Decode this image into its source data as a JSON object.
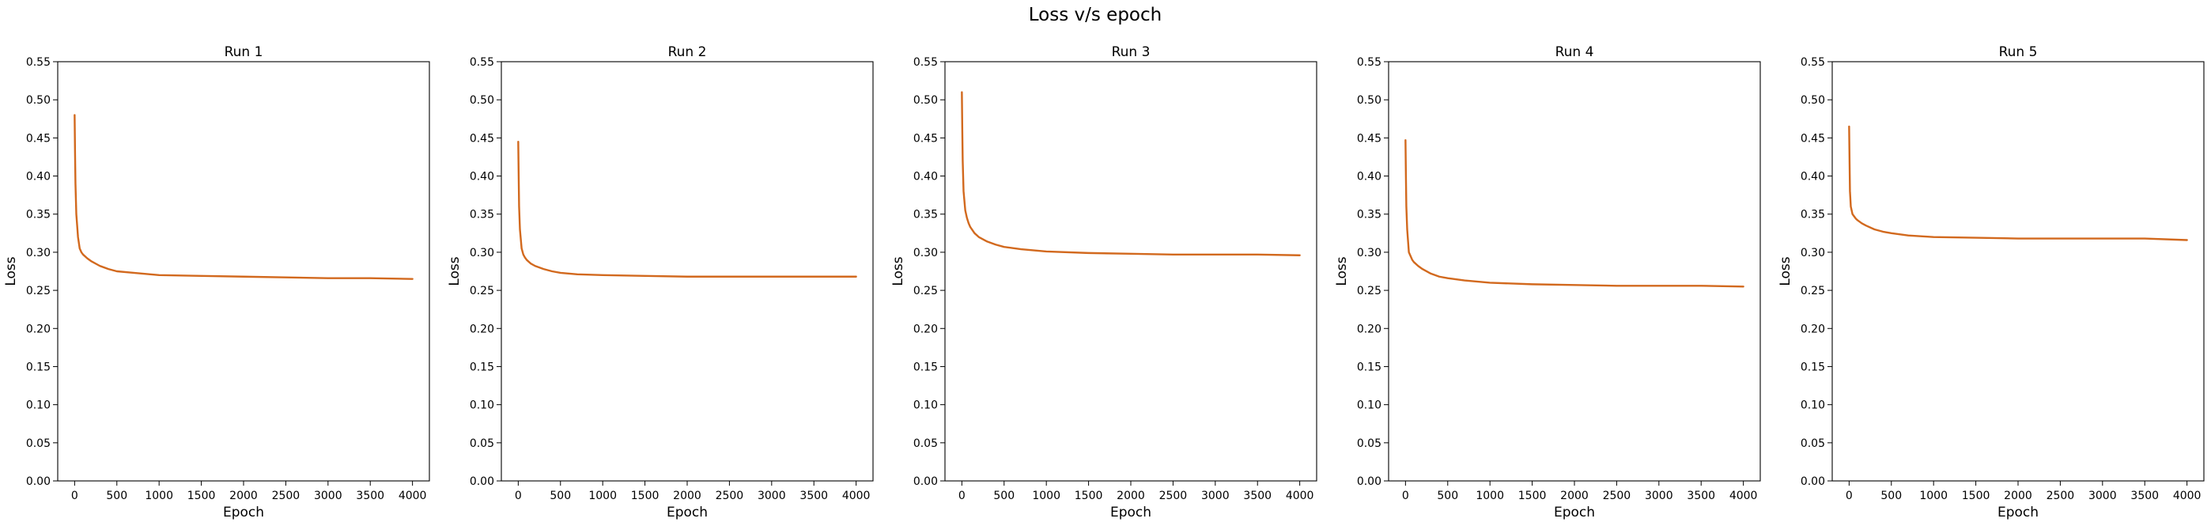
{
  "figure": {
    "title": "Loss v/s epoch"
  },
  "chart_data": [
    {
      "type": "line",
      "title": "Run 1",
      "xlabel": "Epoch",
      "ylabel": "Loss",
      "xlim": [
        -200,
        4200
      ],
      "ylim": [
        0,
        0.55
      ],
      "xticks": [
        0,
        500,
        1000,
        1500,
        2000,
        2500,
        3000,
        3500,
        4000
      ],
      "yticks": [
        0.0,
        0.05,
        0.1,
        0.15,
        0.2,
        0.25,
        0.3,
        0.35,
        0.4,
        0.45,
        0.5,
        0.55
      ],
      "grid": false,
      "series": [
        {
          "color": "#d2691e",
          "x": [
            0,
            5,
            10,
            20,
            40,
            60,
            80,
            100,
            150,
            200,
            300,
            400,
            500,
            700,
            1000,
            1500,
            2000,
            2500,
            3000,
            3500,
            4000
          ],
          "y": [
            0.48,
            0.43,
            0.39,
            0.35,
            0.32,
            0.305,
            0.3,
            0.297,
            0.292,
            0.288,
            0.282,
            0.278,
            0.275,
            0.273,
            0.27,
            0.269,
            0.268,
            0.267,
            0.266,
            0.266,
            0.265
          ]
        }
      ]
    },
    {
      "type": "line",
      "title": "Run 2",
      "xlabel": "Epoch",
      "ylabel": "Loss",
      "xlim": [
        -200,
        4200
      ],
      "ylim": [
        0,
        0.55
      ],
      "xticks": [
        0,
        500,
        1000,
        1500,
        2000,
        2500,
        3000,
        3500,
        4000
      ],
      "yticks": [
        0.0,
        0.05,
        0.1,
        0.15,
        0.2,
        0.25,
        0.3,
        0.35,
        0.4,
        0.45,
        0.5,
        0.55
      ],
      "grid": false,
      "series": [
        {
          "color": "#d2691e",
          "x": [
            0,
            5,
            10,
            20,
            40,
            60,
            80,
            100,
            150,
            200,
            300,
            400,
            500,
            700,
            1000,
            1500,
            2000,
            2500,
            3000,
            3500,
            4000
          ],
          "y": [
            0.445,
            0.4,
            0.36,
            0.33,
            0.305,
            0.297,
            0.293,
            0.29,
            0.285,
            0.282,
            0.278,
            0.275,
            0.273,
            0.271,
            0.27,
            0.269,
            0.268,
            0.268,
            0.268,
            0.268,
            0.268
          ]
        }
      ]
    },
    {
      "type": "line",
      "title": "Run 3",
      "xlabel": "Epoch",
      "ylabel": "Loss",
      "xlim": [
        -200,
        4200
      ],
      "ylim": [
        0,
        0.55
      ],
      "xticks": [
        0,
        500,
        1000,
        1500,
        2000,
        2500,
        3000,
        3500,
        4000
      ],
      "yticks": [
        0.0,
        0.05,
        0.1,
        0.15,
        0.2,
        0.25,
        0.3,
        0.35,
        0.4,
        0.45,
        0.5,
        0.55
      ],
      "grid": false,
      "series": [
        {
          "color": "#d2691e",
          "x": [
            0,
            5,
            10,
            20,
            40,
            60,
            80,
            100,
            150,
            200,
            300,
            400,
            500,
            700,
            1000,
            1500,
            2000,
            2500,
            3000,
            3500,
            4000
          ],
          "y": [
            0.51,
            0.46,
            0.42,
            0.38,
            0.355,
            0.345,
            0.338,
            0.333,
            0.325,
            0.32,
            0.314,
            0.31,
            0.307,
            0.304,
            0.301,
            0.299,
            0.298,
            0.297,
            0.297,
            0.297,
            0.296
          ]
        }
      ]
    },
    {
      "type": "line",
      "title": "Run 4",
      "xlabel": "Epoch",
      "ylabel": "Loss",
      "xlim": [
        -200,
        4200
      ],
      "ylim": [
        0,
        0.55
      ],
      "xticks": [
        0,
        500,
        1000,
        1500,
        2000,
        2500,
        3000,
        3500,
        4000
      ],
      "yticks": [
        0.0,
        0.05,
        0.1,
        0.15,
        0.2,
        0.25,
        0.3,
        0.35,
        0.4,
        0.45,
        0.5,
        0.55
      ],
      "grid": false,
      "series": [
        {
          "color": "#d2691e",
          "x": [
            0,
            5,
            10,
            20,
            40,
            60,
            80,
            100,
            150,
            200,
            300,
            400,
            500,
            700,
            1000,
            1500,
            2000,
            2500,
            3000,
            3500,
            4000
          ],
          "y": [
            0.447,
            0.4,
            0.36,
            0.33,
            0.3,
            0.295,
            0.29,
            0.287,
            0.282,
            0.278,
            0.272,
            0.268,
            0.266,
            0.263,
            0.26,
            0.258,
            0.257,
            0.256,
            0.256,
            0.256,
            0.255
          ]
        }
      ]
    },
    {
      "type": "line",
      "title": "Run 5",
      "xlabel": "Epoch",
      "ylabel": "Loss",
      "xlim": [
        -200,
        4200
      ],
      "ylim": [
        0,
        0.55
      ],
      "xticks": [
        0,
        500,
        1000,
        1500,
        2000,
        2500,
        3000,
        3500,
        4000
      ],
      "yticks": [
        0.0,
        0.05,
        0.1,
        0.15,
        0.2,
        0.25,
        0.3,
        0.35,
        0.4,
        0.45,
        0.5,
        0.55
      ],
      "grid": false,
      "series": [
        {
          "color": "#d2691e",
          "x": [
            0,
            5,
            10,
            20,
            40,
            60,
            80,
            100,
            150,
            200,
            300,
            400,
            500,
            700,
            1000,
            1500,
            2000,
            2500,
            3000,
            3500,
            4000
          ],
          "y": [
            0.465,
            0.42,
            0.38,
            0.36,
            0.35,
            0.347,
            0.344,
            0.342,
            0.338,
            0.335,
            0.33,
            0.327,
            0.325,
            0.322,
            0.32,
            0.319,
            0.318,
            0.318,
            0.318,
            0.318,
            0.316
          ]
        }
      ]
    }
  ]
}
